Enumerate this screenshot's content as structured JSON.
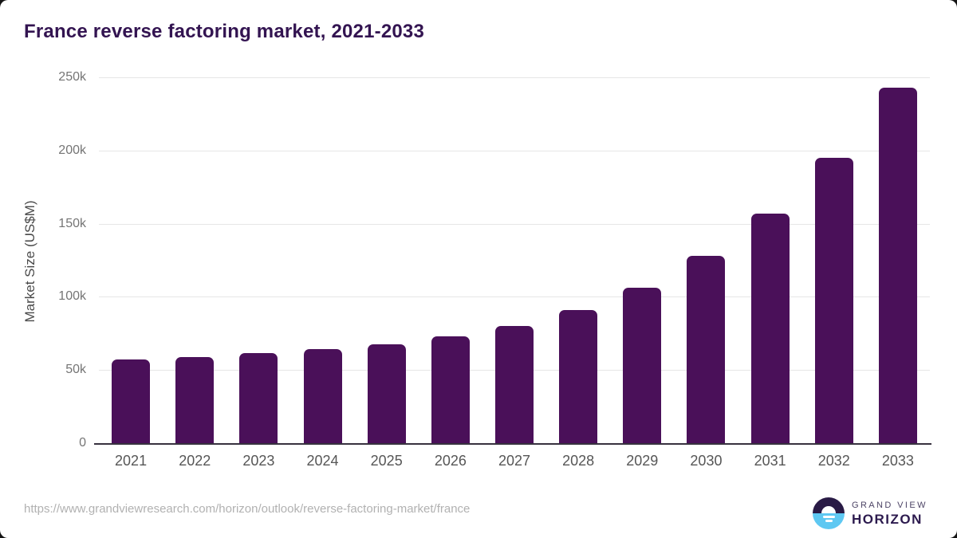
{
  "header": {
    "title": "France reverse factoring market, 2021-2033"
  },
  "chart_data": {
    "type": "bar",
    "title": "France reverse factoring market, 2021-2033",
    "categories": [
      "2021",
      "2022",
      "2023",
      "2024",
      "2025",
      "2026",
      "2027",
      "2028",
      "2029",
      "2030",
      "2031",
      "2032",
      "2033"
    ],
    "values": [
      57000,
      59000,
      61500,
      64000,
      67500,
      73000,
      80000,
      91000,
      106000,
      128000,
      157000,
      195000,
      243000
    ],
    "xlabel": "",
    "ylabel": "Market Size (US$M)",
    "ylim": [
      0,
      250000
    ],
    "yticks": [
      {
        "value": 0,
        "label": "0"
      },
      {
        "value": 50000,
        "label": "50k"
      },
      {
        "value": 100000,
        "label": "100k"
      },
      {
        "value": 150000,
        "label": "150k"
      },
      {
        "value": 200000,
        "label": "200k"
      },
      {
        "value": 250000,
        "label": "250k"
      }
    ],
    "grid": true,
    "legend": "none",
    "bar_color": "#4a1059"
  },
  "colors": {
    "title": "#331451",
    "bar": "#4a1059",
    "gridline": "#e6e6e6",
    "axis_line": "#37323f",
    "tick_label": "#757575",
    "logo_purple": "#291a45",
    "logo_blue": "#5ec8f2"
  },
  "footer": {
    "source_url": "https://www.grandviewresearch.com/horizon/outlook/reverse-factoring-market/france",
    "logo": {
      "brand_top": "GRAND VIEW",
      "brand_bottom": "HORIZON"
    }
  }
}
